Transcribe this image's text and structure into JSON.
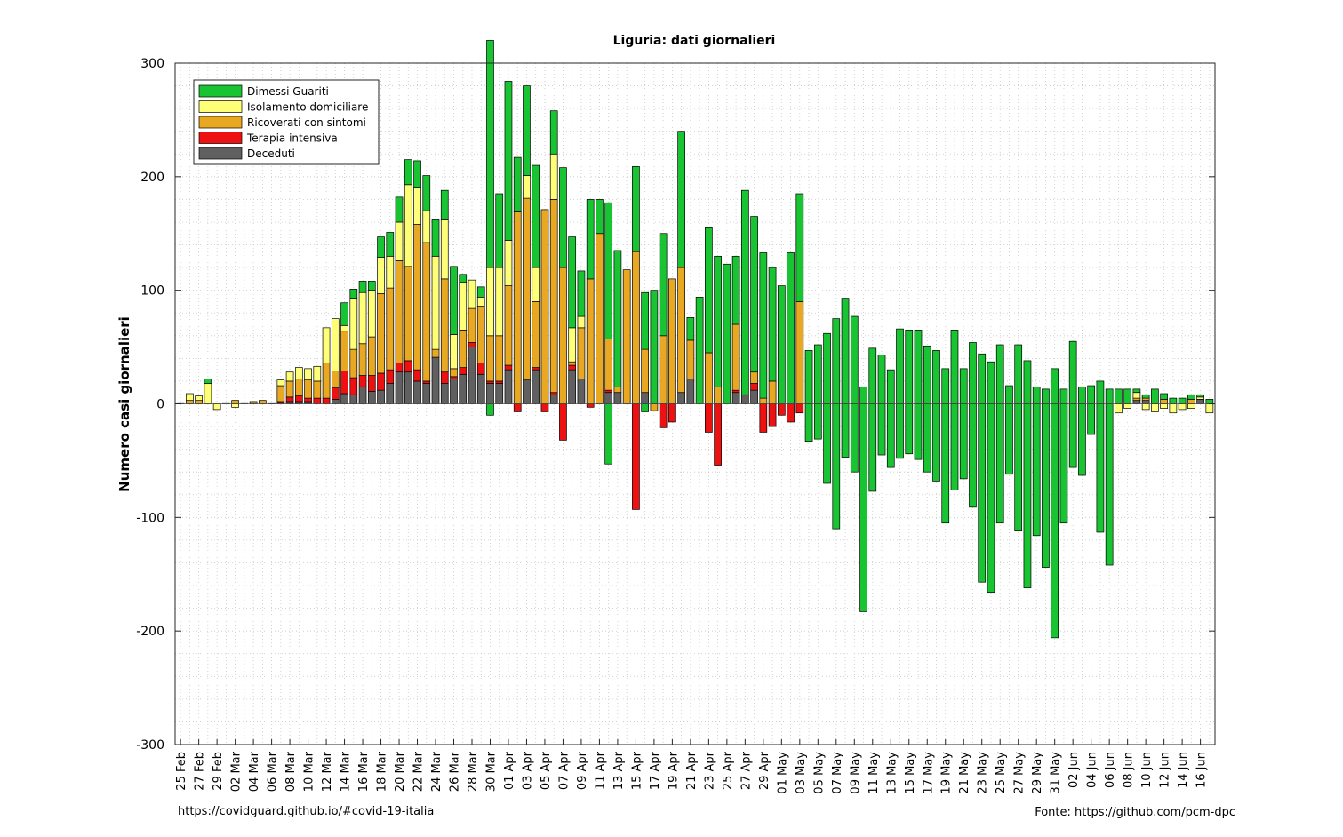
{
  "footer": {
    "left": "https://covidguard.github.io/#covid-19-italia",
    "right": "Fonte: https://github.com/pcm-dpc"
  },
  "chart_data": {
    "type": "bar",
    "stacked": true,
    "title": "Liguria: dati giornalieri",
    "xlabel": "",
    "ylabel": "Numero casi giornalieri",
    "ylim": [
      -300,
      300
    ],
    "yticks": [
      -300,
      -200,
      -100,
      0,
      100,
      200,
      300
    ],
    "grid": "minor-dotted",
    "legend_position": "top-left",
    "tick_labels": [
      "25 Feb",
      "27 Feb",
      "29 Feb",
      "02 Mar",
      "04 Mar",
      "06 Mar",
      "08 Mar",
      "10 Mar",
      "12 Mar",
      "14 Mar",
      "16 Mar",
      "18 Mar",
      "20 Mar",
      "22 Mar",
      "24 Mar",
      "26 Mar",
      "28 Mar",
      "30 Mar",
      "01 Apr",
      "03 Apr",
      "05 Apr",
      "07 Apr",
      "09 Apr",
      "11 Apr",
      "13 Apr",
      "15 Apr",
      "17 Apr",
      "19 Apr",
      "21 Apr",
      "23 Apr",
      "25 Apr",
      "27 Apr",
      "29 Apr",
      "01 May",
      "03 May",
      "05 May",
      "07 May",
      "09 May",
      "11 May",
      "13 May",
      "15 May",
      "17 May",
      "19 May",
      "21 May",
      "23 May",
      "25 May",
      "27 May",
      "29 May",
      "31 May",
      "02 Jun",
      "04 Jun",
      "06 Jun",
      "08 Jun",
      "10 Jun",
      "12 Jun",
      "14 Jun",
      "16 Jun"
    ],
    "series": [
      {
        "name": "Deceduti",
        "color": "#606060",
        "values": [
          0,
          0,
          0,
          0,
          0,
          0,
          0,
          0,
          0,
          0,
          0,
          0,
          0,
          0,
          0,
          0,
          0,
          0,
          5,
          8,
          8,
          10,
          12,
          18,
          22,
          30,
          32,
          18,
          42,
          18,
          22,
          26,
          50,
          26,
          18,
          18,
          25,
          0,
          20,
          30,
          0,
          10,
          35,
          0,
          30,
          24,
          0,
          0,
          0,
          0,
          12,
          0,
          0,
          0,
          0,
          10,
          0,
          0,
          0,
          0,
          0,
          0,
          8,
          0,
          0,
          0,
          10,
          0,
          0,
          0,
          0,
          0,
          0,
          0,
          0,
          0,
          0,
          0,
          0,
          0,
          0,
          0,
          0,
          0,
          0,
          0,
          0,
          0,
          0,
          0,
          0,
          0,
          0,
          0,
          0,
          0,
          0,
          0,
          0,
          0,
          0,
          0,
          0,
          0,
          0,
          0,
          0,
          0,
          0,
          0,
          0,
          0,
          0,
          0,
          0
        ]
      },
      {
        "name": "Terapia intensiva",
        "color": "#ee1111",
        "values": [
          0,
          0,
          0,
          0,
          0,
          0,
          0,
          0,
          0,
          0,
          0,
          0,
          0,
          0,
          0,
          2,
          2,
          5,
          3,
          0,
          0,
          4,
          4,
          2,
          5,
          0,
          8,
          8,
          10,
          6,
          3,
          2,
          3,
          4,
          6,
          0,
          4,
          0,
          0,
          0,
          0,
          0,
          0,
          0,
          0,
          0,
          0,
          0,
          0,
          0,
          0,
          0,
          0,
          0,
          0,
          0,
          0,
          0,
          0,
          0,
          0,
          0,
          0,
          0,
          0,
          0,
          0,
          0,
          0,
          0,
          0,
          0,
          0,
          0,
          0,
          0,
          0,
          0,
          0,
          0,
          0,
          0,
          0,
          0,
          0,
          0,
          0,
          0,
          0,
          0,
          0,
          0,
          0,
          0,
          0,
          0,
          0,
          0,
          0,
          0,
          0,
          0,
          0,
          0,
          0,
          0,
          0,
          0,
          0,
          0,
          0,
          0,
          0,
          0,
          0
        ]
      },
      {
        "name": "Ricoverati con sintomi",
        "color": "#e8a822",
        "values": [
          1,
          3,
          3,
          0,
          2,
          0,
          1,
          1,
          1,
          14,
          16,
          15,
          20,
          15,
          22,
          23,
          20,
          20,
          40,
          45,
          90,
          60,
          74,
          57,
          80,
          73,
          120,
          66,
          70,
          56,
          100,
          83,
          30,
          40,
          50,
          30,
          10,
          20,
          30,
          20,
          20,
          20,
          30,
          0,
          0,
          10,
          6,
          -10,
          10,
          5,
          -5,
          0,
          5,
          -10,
          0,
          5,
          5,
          4,
          1,
          0,
          1,
          1,
          14,
          -5,
          0,
          -20,
          0,
          0,
          -2,
          6,
          -6,
          0,
          -5,
          0,
          -5,
          5,
          0,
          -1,
          10,
          0,
          -10,
          0,
          0,
          -5,
          0,
          0,
          0,
          0,
          0,
          0,
          0,
          0,
          0,
          0,
          0,
          0,
          0,
          0,
          0,
          0,
          0,
          0,
          0,
          0,
          0,
          0,
          0,
          0,
          0,
          0,
          2,
          -5,
          0,
          0,
          0
        ]
      },
      {
        "name": "Isolamento domiciliare",
        "color": "#ffff77",
        "values": [
          0,
          6,
          4,
          18,
          -5,
          0,
          -15,
          -2,
          0,
          5,
          8,
          10,
          10,
          10,
          31,
          28,
          15,
          28,
          28,
          38,
          11,
          45,
          50,
          33,
          92,
          95,
          40,
          80,
          40,
          40,
          80,
          79,
          60,
          111,
          81,
          120,
          125,
          85,
          100,
          9,
          80,
          0,
          44,
          20,
          0,
          10,
          -1,
          -7,
          130,
          14,
          20,
          -2,
          -5,
          0,
          60,
          -8,
          0,
          105,
          0,
          -13,
          45,
          -23,
          0,
          -6,
          5,
          -3,
          0,
          57,
          -20,
          0,
          -25,
          -50,
          0,
          -30,
          -22,
          0,
          0,
          0,
          0,
          0,
          0,
          0,
          0,
          0,
          0,
          0,
          0,
          0,
          0,
          0,
          0,
          0,
          0,
          0,
          0,
          0,
          0,
          0,
          0,
          0,
          0,
          0,
          0,
          0,
          0,
          0,
          0,
          0,
          0,
          0,
          0,
          0,
          0,
          0,
          0,
          0,
          0,
          0,
          0,
          0,
          0,
          0,
          0,
          0,
          0,
          0
        ]
      },
      {
        "name": "Dimessi Guariti",
        "color": "#19c432",
        "values": [
          0,
          0,
          0,
          4,
          0,
          0,
          0,
          0,
          0,
          0,
          0,
          0,
          0,
          0,
          0,
          0,
          0,
          0,
          0,
          0,
          0,
          0,
          0,
          0,
          0,
          0,
          0,
          0,
          0,
          0,
          0,
          0,
          0,
          0,
          0,
          0,
          0,
          0,
          0,
          0,
          0,
          0,
          0,
          0,
          0,
          0,
          0,
          0,
          0,
          0,
          0,
          0,
          0,
          0,
          0,
          0,
          0,
          0,
          0,
          0,
          0,
          0,
          0,
          0,
          0,
          0,
          0,
          0,
          0,
          0,
          0,
          0,
          0,
          0,
          0,
          0,
          0,
          0,
          0,
          0,
          0,
          0,
          0,
          0,
          0,
          0,
          0,
          0,
          0,
          0,
          0,
          0,
          0,
          0,
          0,
          0,
          0,
          0,
          0,
          0,
          0,
          0,
          0,
          0,
          0,
          0,
          0,
          0,
          0,
          0,
          0,
          0,
          0,
          0,
          0
        ]
      }
    ],
    "bars": [
      [
        0,
        0,
        0,
        1,
        0,
        0
      ],
      [
        0,
        0,
        6,
        3,
        0,
        0
      ],
      [
        0,
        0,
        4,
        3,
        0,
        0
      ],
      [
        0,
        0,
        18,
        0,
        4,
        0
      ],
      [
        0,
        0,
        -5,
        0,
        0,
        0
      ],
      [
        0,
        0,
        0,
        1,
        0,
        0
      ],
      [
        0,
        0,
        -3,
        3,
        0,
        0
      ],
      [
        0,
        0,
        0,
        1,
        0,
        0
      ],
      [
        0,
        0,
        0,
        2,
        0,
        0
      ],
      [
        0,
        0,
        0,
        3,
        0,
        0
      ],
      [
        1,
        0,
        0,
        0,
        0,
        0
      ],
      [
        1,
        1,
        5,
        14,
        0,
        0
      ],
      [
        2,
        4,
        8,
        14,
        0,
        0
      ],
      [
        2,
        5,
        10,
        15,
        0,
        0
      ],
      [
        2,
        3,
        10,
        16,
        0,
        0
      ],
      [
        0,
        5,
        13,
        15,
        0,
        0
      ],
      [
        0,
        5,
        31,
        31,
        0,
        0
      ],
      [
        4,
        10,
        46,
        15,
        0,
        0
      ],
      [
        9,
        20,
        5,
        35,
        20,
        0
      ],
      [
        8,
        15,
        45,
        25,
        8,
        0
      ],
      [
        15,
        10,
        45,
        28,
        10,
        0
      ],
      [
        11,
        14,
        41,
        34,
        8,
        0
      ],
      [
        12,
        15,
        32,
        70,
        18,
        0
      ],
      [
        18,
        12,
        28,
        72,
        21,
        0
      ],
      [
        28,
        8,
        34,
        90,
        22,
        0
      ],
      [
        28,
        10,
        72,
        83,
        22,
        0
      ],
      [
        20,
        10,
        32,
        128,
        24,
        0
      ],
      [
        18,
        2,
        28,
        122,
        31,
        0
      ],
      [
        41,
        0,
        82,
        7,
        32,
        0
      ],
      [
        18,
        10,
        52,
        82,
        26,
        0
      ],
      [
        22,
        2,
        30,
        7,
        60,
        0
      ],
      [
        26,
        6,
        42,
        33,
        7,
        0
      ],
      [
        50,
        4,
        25,
        30,
        0,
        0
      ],
      [
        26,
        10,
        8,
        50,
        9,
        0
      ],
      [
        18,
        2,
        60,
        40,
        200,
        -10
      ],
      [
        18,
        2,
        60,
        40,
        65,
        0
      ],
      [
        30,
        4,
        40,
        70,
        140,
        0
      ],
      [
        0,
        -7,
        0,
        169,
        48,
        0
      ],
      [
        21,
        0,
        20,
        160,
        79,
        0
      ],
      [
        30,
        2,
        30,
        58,
        90,
        0
      ],
      [
        0,
        -7,
        0,
        171,
        0,
        0
      ],
      [
        8,
        2,
        40,
        170,
        38,
        0
      ],
      [
        0,
        -32,
        0,
        120,
        88,
        0
      ],
      [
        30,
        4,
        30,
        3,
        80,
        0
      ],
      [
        22,
        0,
        10,
        45,
        40,
        0
      ],
      [
        0,
        -3,
        0,
        110,
        70,
        0
      ],
      [
        0,
        0,
        0,
        150,
        30,
        0
      ],
      [
        10,
        2,
        0,
        45,
        120,
        -53
      ],
      [
        10,
        0,
        0,
        5,
        120,
        0
      ],
      [
        0,
        0,
        0,
        118,
        0,
        0
      ],
      [
        0,
        -93,
        0,
        134,
        75,
        0
      ],
      [
        10,
        0,
        0,
        38,
        50,
        -7
      ],
      [
        0,
        0,
        0,
        -6,
        100,
        0
      ],
      [
        0,
        -21,
        0,
        60,
        90,
        0
      ],
      [
        0,
        -16,
        0,
        110,
        0,
        0
      ],
      [
        10,
        0,
        0,
        110,
        120,
        0
      ],
      [
        22,
        0,
        0,
        34,
        20,
        0
      ],
      [
        0,
        0,
        0,
        0,
        94,
        0
      ],
      [
        0,
        -25,
        0,
        45,
        110,
        0
      ],
      [
        0,
        -54,
        0,
        15,
        115,
        0
      ],
      [
        0,
        0,
        0,
        0,
        123,
        0
      ],
      [
        10,
        2,
        0,
        58,
        60,
        0
      ],
      [
        8,
        0,
        0,
        0,
        180,
        0
      ],
      [
        12,
        6,
        0,
        10,
        137,
        0
      ],
      [
        0,
        -25,
        0,
        5,
        128,
        0
      ],
      [
        0,
        -20,
        0,
        20,
        100,
        0
      ],
      [
        0,
        -10,
        0,
        0,
        104,
        0
      ],
      [
        0,
        -16,
        0,
        0,
        133,
        0
      ],
      [
        0,
        -8,
        0,
        90,
        95,
        0
      ],
      [
        0,
        0,
        0,
        0,
        47,
        -33
      ],
      [
        0,
        0,
        0,
        0,
        52,
        -31
      ],
      [
        0,
        0,
        0,
        0,
        62,
        -70
      ],
      [
        0,
        0,
        0,
        0,
        75,
        -110
      ],
      [
        0,
        0,
        0,
        0,
        93,
        -47
      ],
      [
        0,
        0,
        0,
        0,
        77,
        -60
      ],
      [
        0,
        0,
        0,
        0,
        15,
        -183
      ],
      [
        0,
        0,
        0,
        0,
        49,
        -77
      ],
      [
        0,
        0,
        0,
        0,
        43,
        -45
      ],
      [
        0,
        0,
        0,
        0,
        30,
        -56
      ],
      [
        0,
        0,
        0,
        0,
        66,
        -48
      ],
      [
        0,
        0,
        0,
        0,
        65,
        -44
      ],
      [
        0,
        0,
        0,
        0,
        65,
        -49
      ],
      [
        0,
        0,
        0,
        0,
        51,
        -60
      ],
      [
        0,
        0,
        0,
        0,
        47,
        -68
      ],
      [
        0,
        0,
        0,
        0,
        31,
        -105
      ],
      [
        0,
        0,
        0,
        0,
        65,
        -76
      ],
      [
        0,
        0,
        0,
        0,
        31,
        -66
      ],
      [
        0,
        0,
        0,
        0,
        54,
        -91
      ],
      [
        0,
        0,
        0,
        0,
        44,
        -157
      ],
      [
        0,
        0,
        0,
        0,
        37,
        -166
      ],
      [
        0,
        0,
        0,
        0,
        52,
        -105
      ],
      [
        0,
        0,
        0,
        0,
        16,
        -62
      ],
      [
        0,
        0,
        0,
        0,
        52,
        -112
      ],
      [
        0,
        0,
        0,
        0,
        38,
        -162
      ],
      [
        0,
        0,
        0,
        0,
        15,
        -116
      ],
      [
        0,
        0,
        0,
        0,
        13,
        -144
      ],
      [
        0,
        0,
        0,
        0,
        31,
        -206
      ],
      [
        0,
        0,
        0,
        0,
        13,
        -105
      ],
      [
        0,
        0,
        0,
        0,
        55,
        -56
      ],
      [
        0,
        0,
        0,
        0,
        15,
        -63
      ],
      [
        0,
        0,
        0,
        0,
        16,
        -27
      ],
      [
        0,
        0,
        0,
        0,
        20,
        -113
      ],
      [
        0,
        0,
        0,
        0,
        13,
        -142
      ],
      [
        0,
        0,
        -8,
        0,
        13,
        0
      ],
      [
        0,
        0,
        -4,
        0,
        13,
        0
      ],
      [
        3,
        0,
        5,
        2,
        3,
        0
      ],
      [
        3,
        0,
        -5,
        2,
        3,
        0
      ],
      [
        0,
        0,
        -7,
        0,
        13,
        0
      ],
      [
        0,
        0,
        -4,
        4,
        5,
        0
      ],
      [
        0,
        0,
        -8,
        0,
        5,
        0
      ],
      [
        0,
        0,
        -5,
        0,
        5,
        0
      ],
      [
        0,
        0,
        -4,
        4,
        4,
        0
      ],
      [
        4,
        0,
        2,
        0,
        2,
        0
      ],
      [
        0,
        0,
        -8,
        0,
        4,
        0
      ]
    ],
    "bars_encoding": "each entry: [Deceduti, Terapia intensiva, Isolamento domiciliare, Ricoverati con sintomi, Dimessi Guariti (positive), Dimessi Guariti (negative)]"
  }
}
